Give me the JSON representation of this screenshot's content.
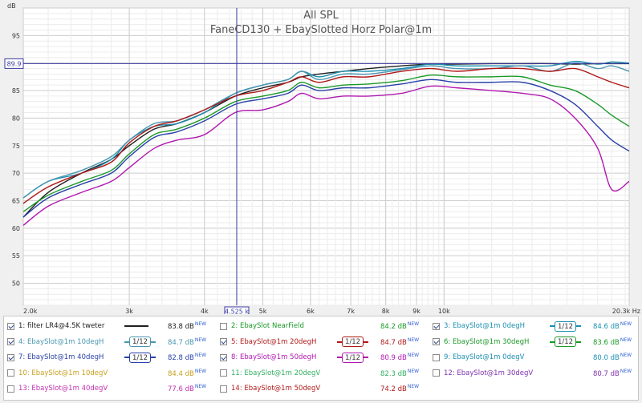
{
  "chart_data": {
    "type": "line",
    "title": "All SPL",
    "subtitle": "FaneCD130 + EbaySlotted Horz Polar@1m",
    "ylabel": "dB",
    "xlabel": "",
    "x_unit": "Hz",
    "xscale": "log",
    "xlim": [
      2000,
      20300
    ],
    "ylim": [
      46,
      100
    ],
    "x_ticks": [
      {
        "value": 2000,
        "label": "2.0k"
      },
      {
        "value": 3000,
        "label": "3k"
      },
      {
        "value": 4000,
        "label": "4k"
      },
      {
        "value": 5000,
        "label": "5k"
      },
      {
        "value": 6000,
        "label": "6k"
      },
      {
        "value": 7000,
        "label": "7k"
      },
      {
        "value": 8000,
        "label": "8k"
      },
      {
        "value": 9000,
        "label": "9k"
      },
      {
        "value": 10000,
        "label": "10k"
      },
      {
        "value": 20300,
        "label": "20.3k Hz"
      }
    ],
    "y_ticks": [
      50,
      55,
      60,
      65,
      70,
      75,
      80,
      85,
      90,
      95
    ],
    "grid": true,
    "cursor": {
      "x": 4525,
      "x_label": "4.525 k",
      "y": 89.9,
      "y_label": "89.9"
    },
    "x": [
      2000,
      2200,
      2500,
      2800,
      3000,
      3300,
      3600,
      4000,
      4500,
      5000,
      5500,
      5800,
      6200,
      6800,
      7500,
      8500,
      9500,
      10500,
      12000,
      13500,
      15000,
      16500,
      18000,
      19000,
      20300
    ],
    "series": [
      {
        "name": "1: filter LR4@4.5K tweter",
        "color": "#202020",
        "values": [
          62,
          66.5,
          70,
          72.5,
          75,
          78,
          79,
          81,
          84,
          85.5,
          86.5,
          87.5,
          88,
          88.5,
          89,
          89.5,
          89.8,
          89.8,
          89.9,
          89.9,
          89.9,
          89.8,
          89.9,
          89.9,
          89.9
        ]
      },
      {
        "name": "3: EbaySlot@1m 0degH",
        "color": "#1b8fb0",
        "values": [
          65.5,
          68.5,
          70,
          72.5,
          76,
          78.5,
          79,
          81,
          84.5,
          86,
          87,
          88.5,
          87.5,
          88.5,
          88.5,
          89,
          89.8,
          89.5,
          89.5,
          89.5,
          89.5,
          90.3,
          89.8,
          90.2,
          90
        ]
      },
      {
        "name": "4: EbaySlot@1m 10degH",
        "color": "#4a96b0",
        "values": [
          65.5,
          68.5,
          70.5,
          73,
          76,
          79,
          79.5,
          81.5,
          84.5,
          86,
          87,
          88.5,
          87,
          88,
          88,
          88.8,
          89.5,
          89,
          89,
          89.5,
          88.5,
          90,
          89,
          89.5,
          88.5
        ]
      },
      {
        "name": "5: EbaySlot@1m 20degH",
        "color": "#b01818",
        "values": [
          64.5,
          67.5,
          70,
          72,
          75.5,
          78.5,
          79.5,
          81.5,
          84,
          85,
          86.5,
          87.5,
          86.5,
          87.5,
          87.5,
          88.5,
          89,
          88.5,
          89,
          89,
          88.5,
          89,
          87.5,
          86.5,
          85.5
        ]
      },
      {
        "name": "6: EbaySlot@1m 30degH",
        "color": "#1a9a28",
        "values": [
          63,
          66,
          68.5,
          70.5,
          73.5,
          77,
          78,
          80,
          83,
          84,
          85,
          86.5,
          85.5,
          86,
          86.2,
          86.8,
          87.8,
          87.5,
          87.5,
          87.5,
          86,
          85,
          82.5,
          80.5,
          78.5
        ]
      },
      {
        "name": "7: EbaySlot@1m 40degH",
        "color": "#2840a8",
        "values": [
          62,
          65.5,
          68,
          70,
          73,
          76.5,
          77.5,
          79.5,
          82.5,
          83.5,
          84.5,
          86,
          85,
          85.5,
          85.5,
          86.2,
          87,
          86.5,
          86.5,
          86.5,
          85,
          82.5,
          78.5,
          76,
          74
        ]
      },
      {
        "name": "8: EbaySlot@1m 50degH",
        "color": "#b018b0",
        "values": [
          60.5,
          64,
          66.5,
          68.5,
          71,
          74.5,
          76,
          77,
          81,
          81.5,
          83,
          84.5,
          83.5,
          84,
          84,
          84.5,
          85.8,
          85.5,
          85,
          84.5,
          83.5,
          80,
          74.5,
          67,
          68.5
        ]
      }
    ]
  },
  "legend": [
    {
      "label": "1: filter LR4@4.5K tweter",
      "value": "83.8 dB",
      "checked": true,
      "color": "#202020",
      "smooth": ""
    },
    {
      "label": "2: EbaySlot NearField",
      "value": "84.2 dB",
      "checked": false,
      "color": "#1a9a28",
      "smooth": ""
    },
    {
      "label": "3: EbaySlot@1m 0degH",
      "value": "84.6 dB",
      "checked": true,
      "color": "#1b8fb0",
      "smooth": "1/12"
    },
    {
      "label": "4: EbaySlot@1m 10degH",
      "value": "84.7 dB",
      "checked": true,
      "color": "#4a96b0",
      "smooth": "1/12"
    },
    {
      "label": "5: EbaySlot@1m 20degH",
      "value": "84.7 dB",
      "checked": true,
      "color": "#b01818",
      "smooth": "1/12"
    },
    {
      "label": "6: EbaySlot@1m 30degH",
      "value": "83.6 dB",
      "checked": true,
      "color": "#1a9a28",
      "smooth": "1/12"
    },
    {
      "label": "7: EbaySlot@1m 40degH",
      "value": "82.8 dB",
      "checked": true,
      "color": "#2840a8",
      "smooth": "1/12"
    },
    {
      "label": "8: EbaySlot@1m 50degH",
      "value": "80.9 dB",
      "checked": true,
      "color": "#b018b0",
      "smooth": "1/12"
    },
    {
      "label": "9: EbaySlot@1m 0degV",
      "value": "80.0 dB",
      "checked": false,
      "color": "#1b8fb0",
      "smooth": ""
    },
    {
      "label": "10: EbaySlot@1m 10degV",
      "value": "84.4 dB",
      "checked": false,
      "color": "#c8a020",
      "smooth": ""
    },
    {
      "label": "11: EbaySlot@1m 20degV",
      "value": "82.3 dB",
      "checked": false,
      "color": "#30b060",
      "smooth": ""
    },
    {
      "label": "12: EbaySlot@1m 30degV",
      "value": "80.7 dB",
      "checked": false,
      "color": "#8030b0",
      "smooth": ""
    },
    {
      "label": "13: EbaySlot@1m 40degV",
      "value": "77.6 dB",
      "checked": false,
      "color": "#c030b0",
      "smooth": ""
    },
    {
      "label": "14: EbaySlot@1m 50degV",
      "value": "74.2 dB",
      "checked": false,
      "color": "#b01818",
      "smooth": ""
    }
  ],
  "legend_new_tag": "NEW"
}
